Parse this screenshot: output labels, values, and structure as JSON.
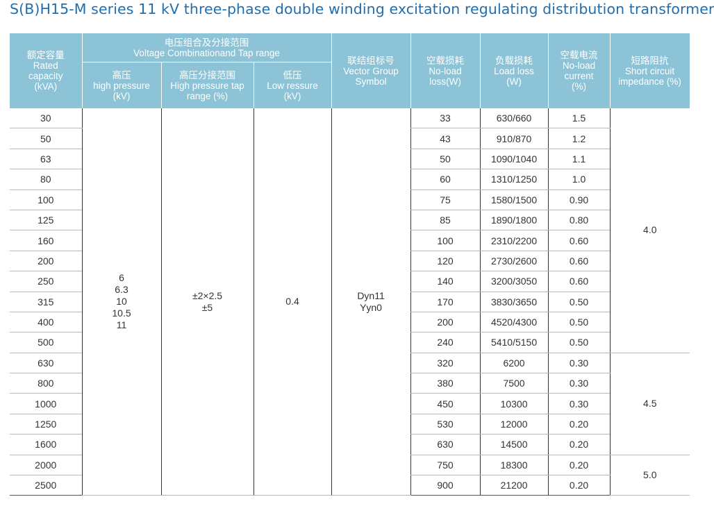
{
  "title": "S(B)H15-M series 11 kV three-phase double winding excitation regulating distribution transformer",
  "headers": {
    "capacity": {
      "zh": "额定容量",
      "en": "Rated capacity (kVA)"
    },
    "voltage_group": {
      "zh": "电压组合及分接范围",
      "en": "Voltage Combinationand Tap range"
    },
    "high": {
      "zh": "高压",
      "en": "high pressure (kV)"
    },
    "tap": {
      "zh": "高压分接范围",
      "en": "High pressure tap range (%)"
    },
    "low": {
      "zh": "低压",
      "en": "Low ressure (kV)"
    },
    "vector": {
      "zh": "联结组标号",
      "en": "Vector Group Symbol"
    },
    "noload": {
      "zh": "空载损耗",
      "en": "No-load loss(W)"
    },
    "load": {
      "zh": "负载损耗",
      "en": "Load loss (W)"
    },
    "current": {
      "zh": "空载电流",
      "en": "No-load current (%)"
    },
    "impedance": {
      "zh": "短路阻抗",
      "en": "Short circuit impedance (%)"
    }
  },
  "merged": {
    "high_voltage": "6\n6.3\n10\n10.5\n11",
    "tap_range": "±2×2.5\n±5",
    "low_voltage": "0.4",
    "vector_group": "Dyn11\nYyn0",
    "impedance_1": "4.0",
    "impedance_2": "4.5",
    "impedance_3": "5.0"
  },
  "rows": [
    {
      "capacity": "30",
      "noload": "33",
      "load": "630/660",
      "current": "1.5"
    },
    {
      "capacity": "50",
      "noload": "43",
      "load": "910/870",
      "current": "1.2"
    },
    {
      "capacity": "63",
      "noload": "50",
      "load": "1090/1040",
      "current": "1.1"
    },
    {
      "capacity": "80",
      "noload": "60",
      "load": "1310/1250",
      "current": "1.0"
    },
    {
      "capacity": "100",
      "noload": "75",
      "load": "1580/1500",
      "current": "0.90"
    },
    {
      "capacity": "125",
      "noload": "85",
      "load": "1890/1800",
      "current": "0.80"
    },
    {
      "capacity": "160",
      "noload": "100",
      "load": "2310/2200",
      "current": "0.60"
    },
    {
      "capacity": "200",
      "noload": "120",
      "load": "2730/2600",
      "current": "0.60"
    },
    {
      "capacity": "250",
      "noload": "140",
      "load": "3200/3050",
      "current": "0.60"
    },
    {
      "capacity": "315",
      "noload": "170",
      "load": "3830/3650",
      "current": "0.50"
    },
    {
      "capacity": "400",
      "noload": "200",
      "load": "4520/4300",
      "current": "0.50"
    },
    {
      "capacity": "500",
      "noload": "240",
      "load": "5410/5150",
      "current": "0.50"
    },
    {
      "capacity": "630",
      "noload": "320",
      "load": "6200",
      "current": "0.30"
    },
    {
      "capacity": "800",
      "noload": "380",
      "load": "7500",
      "current": "0.30"
    },
    {
      "capacity": "1000",
      "noload": "450",
      "load": "10300",
      "current": "0.30"
    },
    {
      "capacity": "1250",
      "noload": "530",
      "load": "12000",
      "current": "0.20"
    },
    {
      "capacity": "1600",
      "noload": "630",
      "load": "14500",
      "current": "0.20"
    },
    {
      "capacity": "2000",
      "noload": "750",
      "load": "18300",
      "current": "0.20"
    },
    {
      "capacity": "2500",
      "noload": "900",
      "load": "21200",
      "current": "0.20"
    }
  ]
}
